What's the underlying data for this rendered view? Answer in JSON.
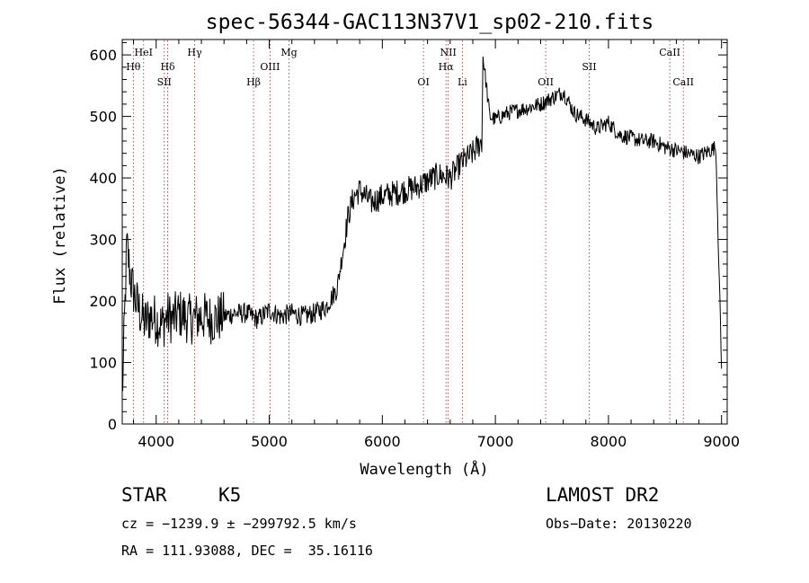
{
  "chart_data": {
    "type": "line",
    "title": "spec-56344-GAC113N37V1_sp02-210.fits",
    "xlabel": "Wavelength (Å)",
    "ylabel": "Flux (relative)",
    "xlim": [
      3700,
      9050
    ],
    "ylim": [
      0,
      625
    ],
    "xticks": [
      4000,
      5000,
      6000,
      7000,
      8000,
      9000
    ],
    "yticks": [
      0,
      100,
      200,
      300,
      400,
      500,
      600
    ],
    "grid": false,
    "series": [
      {
        "x": [
          3700,
          3740,
          3780,
          3820,
          3860,
          3900,
          3950,
          4000,
          4050,
          4100,
          4150,
          4200,
          4300,
          4400,
          4500,
          4600,
          4700,
          4800,
          4900,
          5000,
          5100,
          5200,
          5300,
          5400,
          5500,
          5600,
          5650,
          5700,
          5750,
          5800,
          5900,
          6000,
          6100,
          6200,
          6300,
          6400,
          6500,
          6600,
          6700,
          6800,
          6880,
          6890,
          6950,
          7000,
          7100,
          7200,
          7300,
          7400,
          7500,
          7600,
          7700,
          7800,
          7900,
          8000,
          8100,
          8200,
          8300,
          8400,
          8500,
          8600,
          8700,
          8800,
          8900,
          8950,
          9000
        ],
        "y": [
          40,
          290,
          230,
          200,
          180,
          165,
          175,
          170,
          160,
          175,
          170,
          180,
          170,
          175,
          170,
          175,
          180,
          180,
          170,
          185,
          175,
          180,
          175,
          180,
          190,
          220,
          280,
          340,
          370,
          380,
          360,
          370,
          375,
          380,
          385,
          395,
          405,
          400,
          425,
          440,
          460,
          600,
          500,
          495,
          505,
          510,
          515,
          520,
          530,
          540,
          505,
          495,
          480,
          490,
          470,
          465,
          460,
          460,
          450,
          445,
          440,
          435,
          445,
          450,
          90
        ]
      }
    ],
    "lines": [
      {
        "label": "Hθ",
        "x": 3798,
        "row": 2
      },
      {
        "label": "HeI",
        "x": 3889,
        "row": 1
      },
      {
        "label": "Hδ",
        "x": 4102,
        "row": 2
      },
      {
        "label": "SII",
        "x": 4072,
        "row": 3
      },
      {
        "label": "Hγ",
        "x": 4340,
        "row": 1
      },
      {
        "label": "Hβ",
        "x": 4861,
        "row": 3
      },
      {
        "label": "OIII",
        "x": 5007,
        "row": 2
      },
      {
        "label": "Mg",
        "x": 5175,
        "row": 1
      },
      {
        "label": "OI",
        "x": 6364,
        "row": 3
      },
      {
        "label": "NII",
        "x": 6583,
        "row": 1
      },
      {
        "label": "Hα",
        "x": 6563,
        "row": 2
      },
      {
        "label": "Li",
        "x": 6708,
        "row": 3
      },
      {
        "label": "OII",
        "x": 7445,
        "row": 3
      },
      {
        "label": "SII",
        "x": 7830,
        "row": 2
      },
      {
        "label": "CaII",
        "x": 8542,
        "row": 1
      },
      {
        "label": "CaII",
        "x": 8662,
        "row": 3
      }
    ]
  },
  "info": {
    "class": "STAR",
    "subclass": "K5",
    "survey": "LAMOST DR2",
    "cz": "cz = −1239.9 ± −299792.5 km/s",
    "obs_date": "Obs−Date: 20130220",
    "coords": "RA = 111.93088, DEC =  35.16116"
  }
}
